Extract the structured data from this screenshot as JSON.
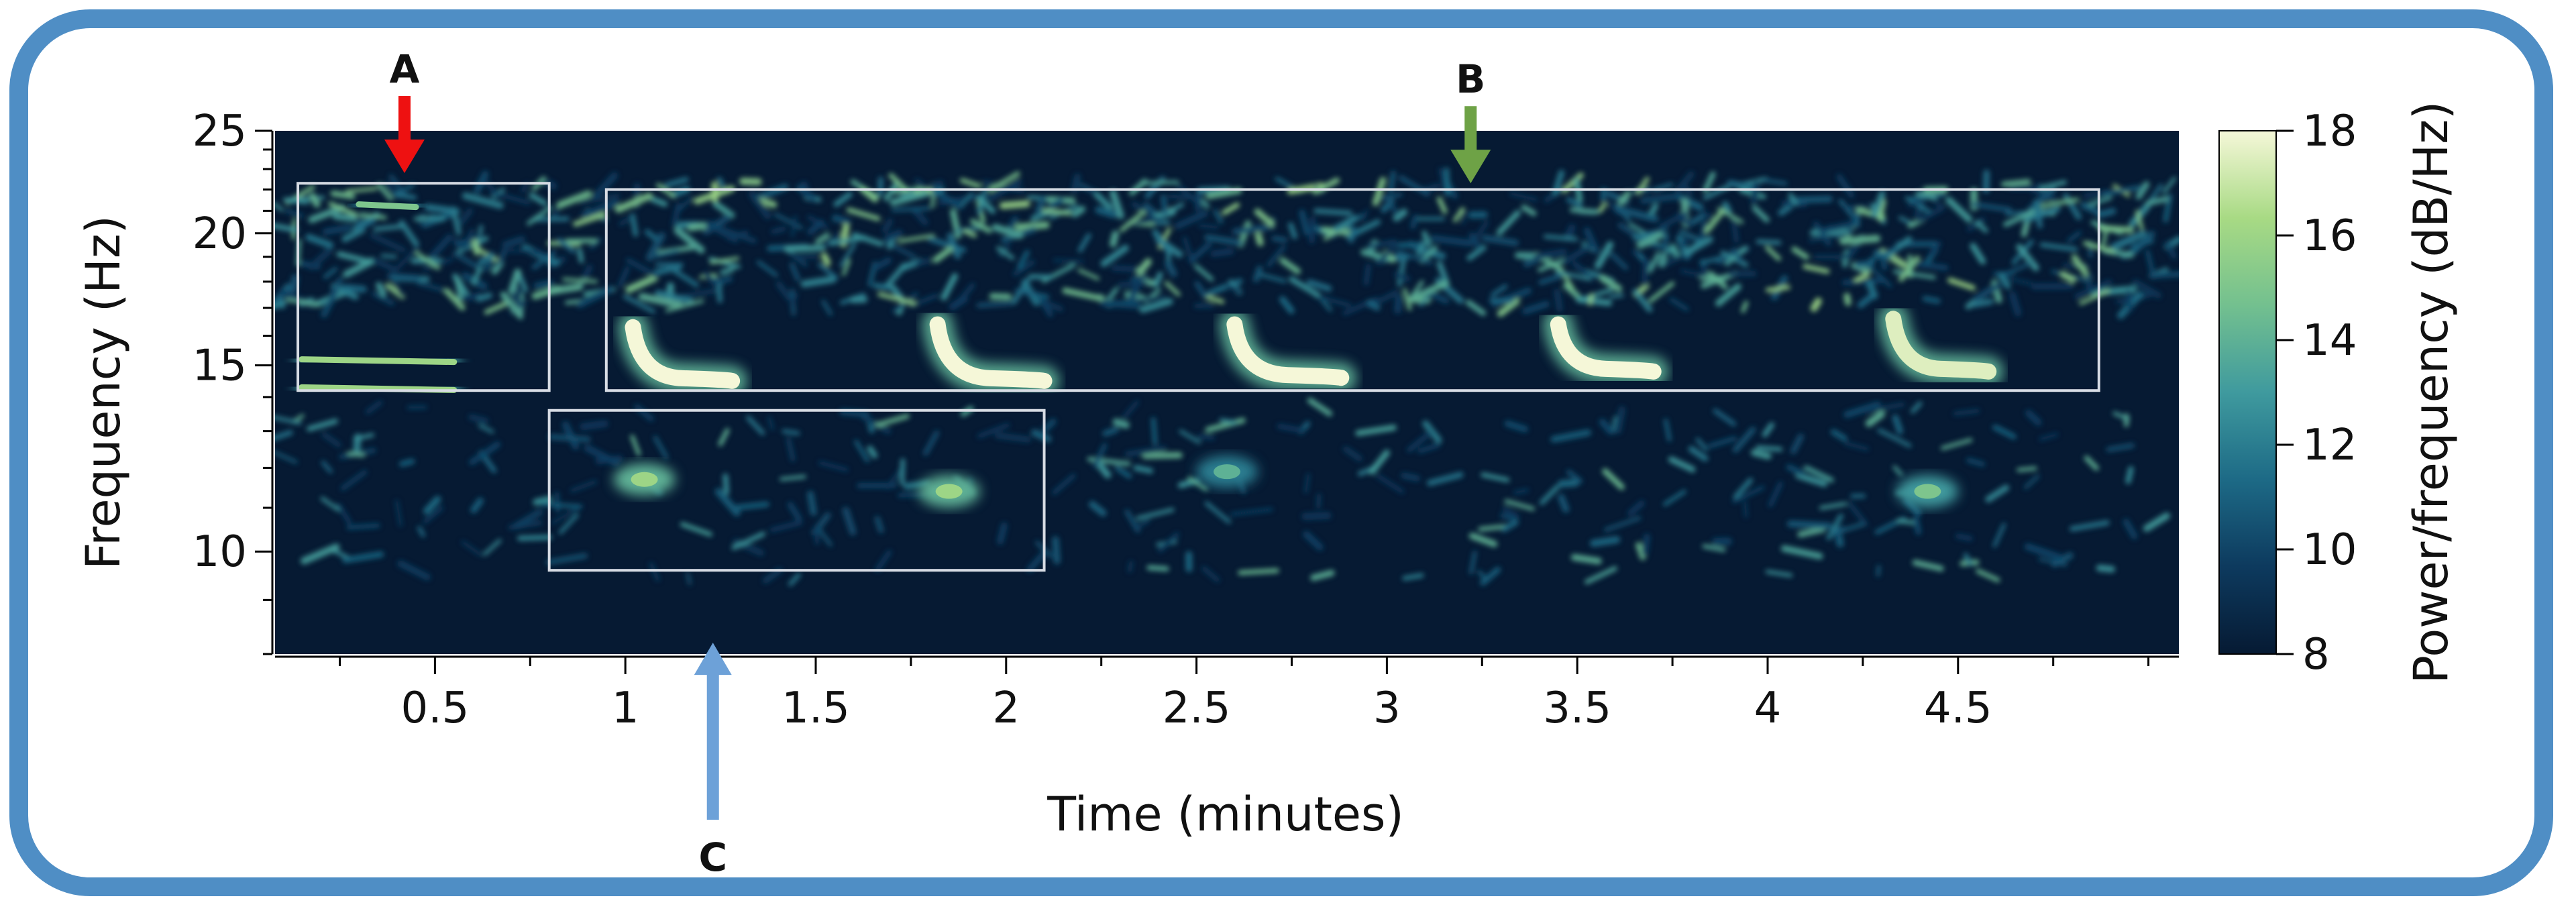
{
  "chart_data": {
    "type": "heatmap",
    "title": "",
    "xlabel": "Time (minutes)",
    "ylabel": "Frequency (Hz)",
    "x_ticks": [
      "0.5",
      "1",
      "1.5",
      "2",
      "2.5",
      "3",
      "3.5",
      "4",
      "4.5"
    ],
    "y_ticks": [
      "10",
      "15",
      "20",
      "25"
    ],
    "xlim": [
      0.08,
      5.08
    ],
    "ylim": [
      8,
      25
    ],
    "y_scale": "log",
    "colorbar": {
      "label": "Power/frequency (dB/Hz)",
      "ticks": [
        "8",
        "10",
        "12",
        "14",
        "16",
        "18"
      ],
      "range": [
        8,
        18
      ],
      "colors": [
        "#061a33",
        "#0d3a5e",
        "#1d6a86",
        "#3f9a9e",
        "#73c08f",
        "#a8da84",
        "#f5f7d8"
      ]
    },
    "background_color": "#061a33",
    "calls": [
      {
        "x0": 1.02,
        "y0": 16.3,
        "x1": 1.28,
        "y1": 14.5,
        "db": 18
      },
      {
        "x0": 1.82,
        "y0": 16.4,
        "x1": 2.1,
        "y1": 14.5,
        "db": 18
      },
      {
        "x0": 2.6,
        "y0": 16.4,
        "x1": 2.88,
        "y1": 14.6,
        "db": 18
      },
      {
        "x0": 3.45,
        "y0": 16.4,
        "x1": 3.7,
        "y1": 14.8,
        "db": 18
      },
      {
        "x0": 4.33,
        "y0": 16.6,
        "x1": 4.58,
        "y1": 14.8,
        "db": 17.5
      }
    ],
    "harmonics": [
      {
        "x0": 0.15,
        "x1": 0.55,
        "y": 15.2,
        "db": 16
      },
      {
        "x0": 0.15,
        "x1": 0.55,
        "y": 14.3,
        "db": 16
      },
      {
        "x0": 0.3,
        "x1": 0.45,
        "y": 21.3,
        "db": 15
      }
    ],
    "low_band_spots": [
      {
        "x": 1.05,
        "y": 11.7,
        "db": 16
      },
      {
        "x": 1.85,
        "y": 11.4,
        "db": 16
      },
      {
        "x": 2.58,
        "y": 11.9,
        "db": 14
      },
      {
        "x": 4.42,
        "y": 11.4,
        "db": 15
      }
    ],
    "boxes": [
      {
        "x0": 0.14,
        "x1": 0.8,
        "y0": 14.2,
        "y1": 22.3
      },
      {
        "x0": 0.95,
        "x1": 4.87,
        "y0": 14.2,
        "y1": 22.0
      },
      {
        "x0": 0.8,
        "x1": 2.1,
        "y0": 9.6,
        "y1": 13.6
      }
    ],
    "markers": [
      {
        "label": "A",
        "x": 0.42,
        "y": 22.8,
        "color": "#ee1111",
        "direction": "down"
      },
      {
        "label": "B",
        "x": 3.22,
        "y": 22.3,
        "color": "#6ea246",
        "direction": "down"
      },
      {
        "label": "C",
        "x": 1.23,
        "y": 8.2,
        "color": "#6da1d8",
        "direction": "up"
      }
    ]
  }
}
